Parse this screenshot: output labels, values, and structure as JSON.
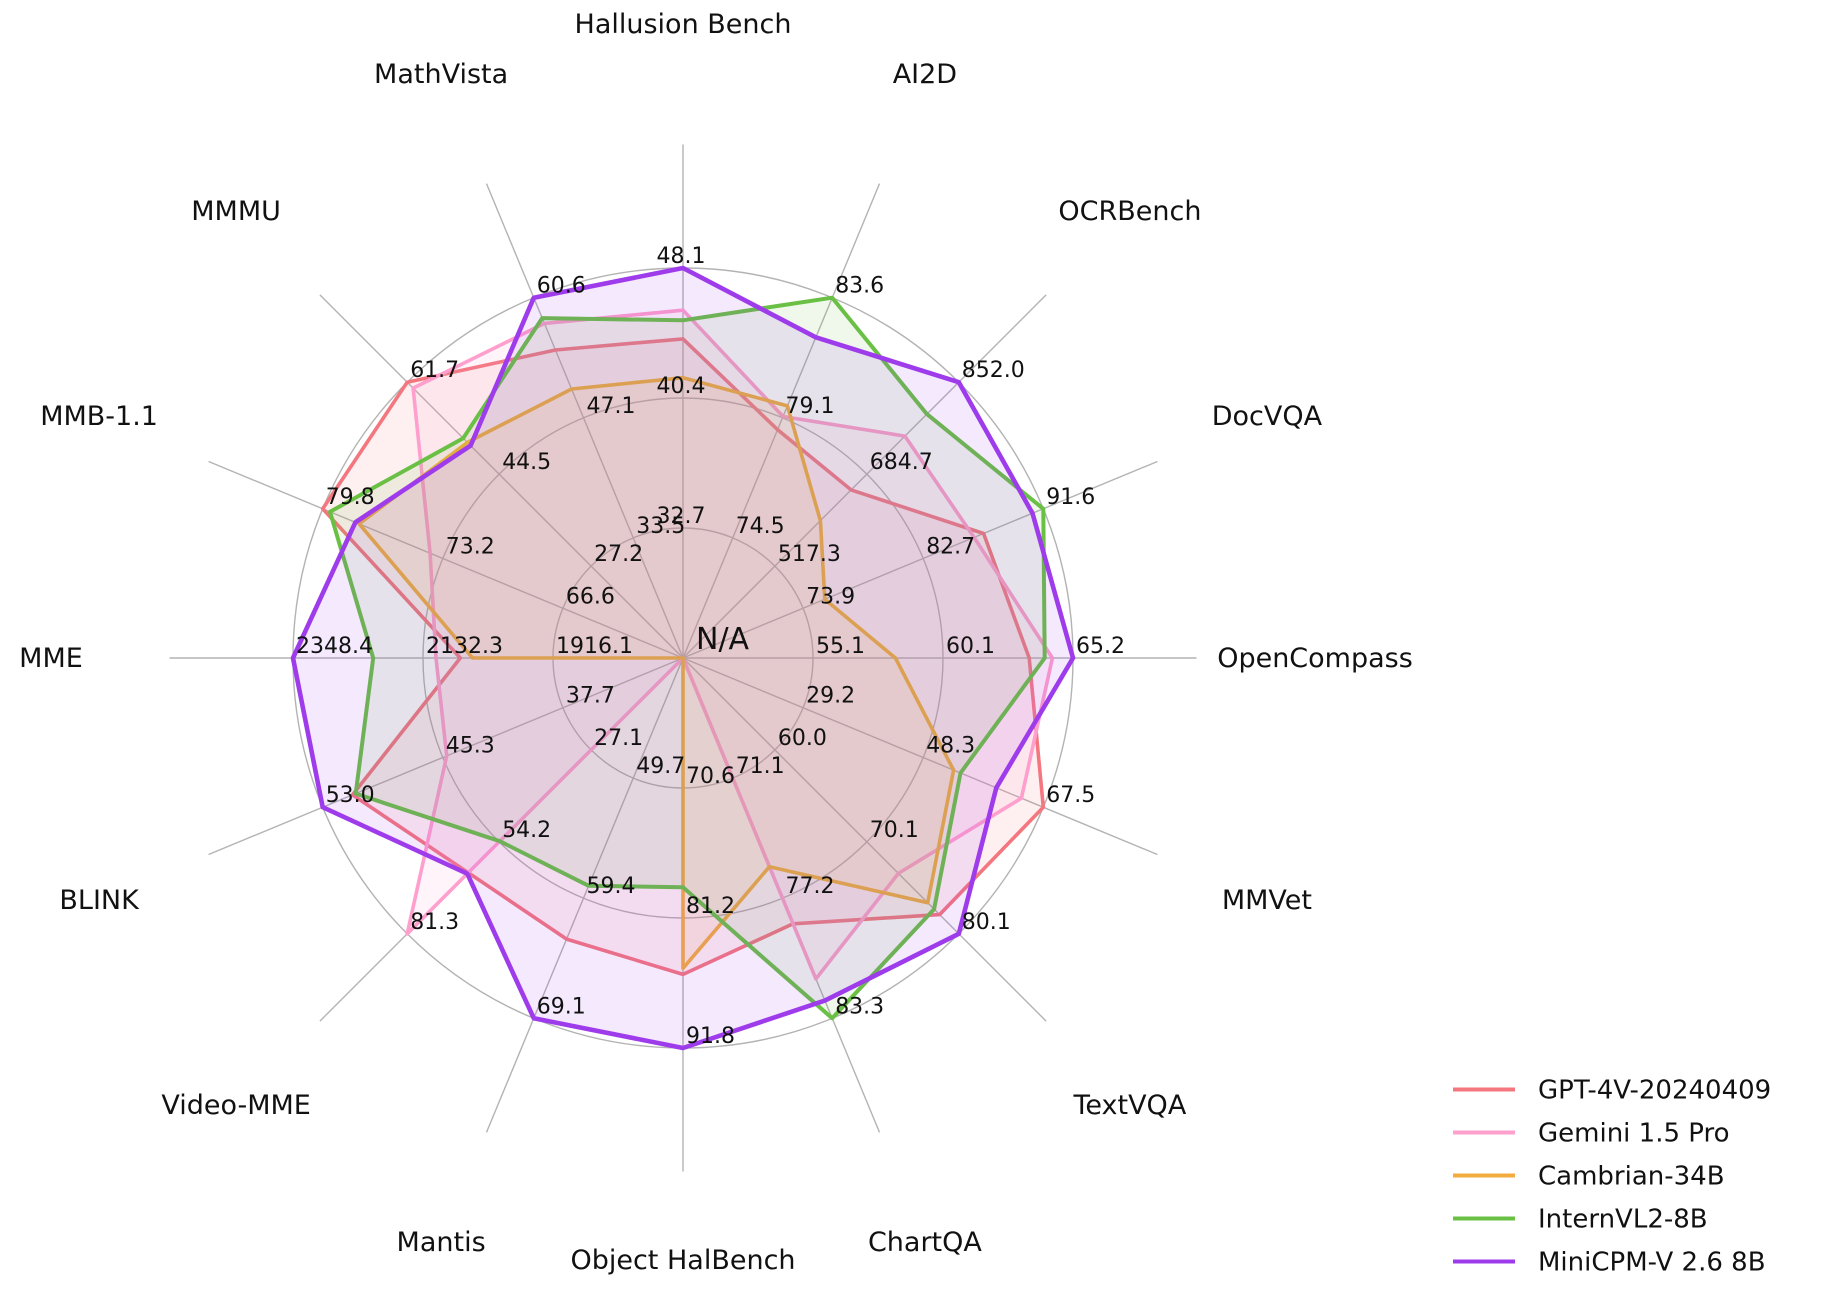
{
  "page": {
    "background": "#ffffff"
  },
  "chart_data": {
    "type": "radar",
    "title": "",
    "center_label": "N/A",
    "grid": {
      "ring_count": 3,
      "color": "#b3b3b3",
      "spokes": 16
    },
    "legend_position": "bottom-right",
    "axes": [
      {
        "label": "Hallusion Bench",
        "min": 25.0,
        "max": 48.1,
        "ring_labels": [
          "32.7",
          "40.4",
          "48.1"
        ]
      },
      {
        "label": "AI2D",
        "min": 69.95,
        "max": 83.6,
        "ring_labels": [
          "74.5",
          "79.1",
          "83.6"
        ]
      },
      {
        "label": "OCRBench",
        "min": 349.9,
        "max": 852.0,
        "ring_labels": [
          "517.3",
          "684.7",
          "852.0"
        ]
      },
      {
        "label": "DocVQA",
        "min": 65.05,
        "max": 91.6,
        "ring_labels": [
          "73.9",
          "82.7",
          "91.6"
        ]
      },
      {
        "label": "OpenCompass",
        "min": 50.05,
        "max": 65.2,
        "ring_labels": [
          "55.1",
          "60.1",
          "65.2"
        ]
      },
      {
        "label": "MMVet",
        "min": 10.05,
        "max": 67.5,
        "ring_labels": [
          "29.2",
          "48.3",
          "67.5"
        ]
      },
      {
        "label": "TextVQA",
        "min": 49.95,
        "max": 80.1,
        "ring_labels": [
          "60.0",
          "70.1",
          "80.1"
        ]
      },
      {
        "label": "ChartQA",
        "min": 65.0,
        "max": 83.3,
        "ring_labels": [
          "71.1",
          "77.2",
          "83.3"
        ]
      },
      {
        "label": "Object HalBench",
        "min": 60.0,
        "max": 91.8,
        "ring_labels": [
          "70.6",
          "81.2",
          "91.8"
        ]
      },
      {
        "label": "Mantis",
        "min": 40.0,
        "max": 69.1,
        "ring_labels": [
          "49.7",
          "59.4",
          "69.1"
        ]
      },
      {
        "label": "Video-MME",
        "min": 0.0,
        "max": 81.3,
        "ring_labels": [
          "27.1",
          "54.2",
          "81.3"
        ]
      },
      {
        "label": "BLINK",
        "min": 30.05,
        "max": 53.0,
        "ring_labels": [
          "37.7",
          "45.3",
          "53.0"
        ]
      },
      {
        "label": "MME",
        "min": 1699.8,
        "max": 2348.4,
        "ring_labels": [
          "1916.1",
          "2132.3",
          "2348.4"
        ]
      },
      {
        "label": "MMB-1.1",
        "min": 60.0,
        "max": 79.8,
        "ring_labels": [
          "66.6",
          "73.2",
          "79.8"
        ]
      },
      {
        "label": "MMMU",
        "min": 9.95,
        "max": 61.7,
        "ring_labels": [
          "27.2",
          "44.5",
          "61.7"
        ]
      },
      {
        "label": "MathVista",
        "min": 19.95,
        "max": 60.6,
        "ring_labels": [
          "33.5",
          "47.1",
          "60.6"
        ]
      }
    ],
    "series": [
      {
        "name": "GPT-4V-20240409",
        "color": "#f4777f",
        "stroke_width": 3.6,
        "values": [
          43.9,
          78.6,
          656.0,
          87.2,
          63.5,
          67.5,
          78.0,
          78.5,
          85.8,
          62.7,
          63.3,
          51.1,
          2070.2,
          79.8,
          61.7,
          54.7
        ]
      },
      {
        "name": "Gemini 1.5 Pro",
        "color": "#ff9fcd",
        "stroke_width": 3.6,
        "values": [
          45.6,
          79.1,
          754.0,
          86.5,
          64.4,
          64.0,
          73.5,
          81.3,
          null,
          null,
          81.3,
          45.1,
          2110.6,
          73.9,
          60.6,
          57.7
        ]
      },
      {
        "name": "Cambrian-34B",
        "color": "#f3ac3e",
        "stroke_width": 3.6,
        "values": [
          41.6,
          79.5,
          600.0,
          75.5,
          58.3,
          53.2,
          76.7,
          75.6,
          85.3,
          null,
          null,
          null,
          2049.9,
          77.8,
          50.4,
          50.3
        ]
      },
      {
        "name": "InternVL2-8B",
        "color": "#6ac045",
        "stroke_width": 4.0,
        "values": [
          45.0,
          83.6,
          794.0,
          91.6,
          64.1,
          54.3,
          77.4,
          83.3,
          78.7,
          58.4,
          54.0,
          50.9,
          2215.1,
          79.4,
          51.2,
          58.3
        ]
      },
      {
        "name": "MiniCPM-V 2.6 8B",
        "color": "#9e3beb",
        "stroke_width": 4.6,
        "values": [
          48.1,
          82.1,
          852.0,
          90.8,
          65.2,
          60.0,
          80.1,
          82.4,
          91.8,
          69.1,
          63.6,
          53.0,
          2348.4,
          78.0,
          49.8,
          60.6
        ]
      }
    ],
    "na_policy": "null values are N/A and are drawn at the chart center"
  },
  "legend": {
    "entries": [
      {
        "label": "GPT-4V-20240409",
        "color": "#f4777f"
      },
      {
        "label": "Gemini 1.5 Pro",
        "color": "#ff9fcd"
      },
      {
        "label": "Cambrian-34B",
        "color": "#f3ac3e"
      },
      {
        "label": "InternVL2-8B",
        "color": "#6ac045"
      },
      {
        "label": "MiniCPM-V 2.6 8B",
        "color": "#9e3beb"
      }
    ]
  }
}
